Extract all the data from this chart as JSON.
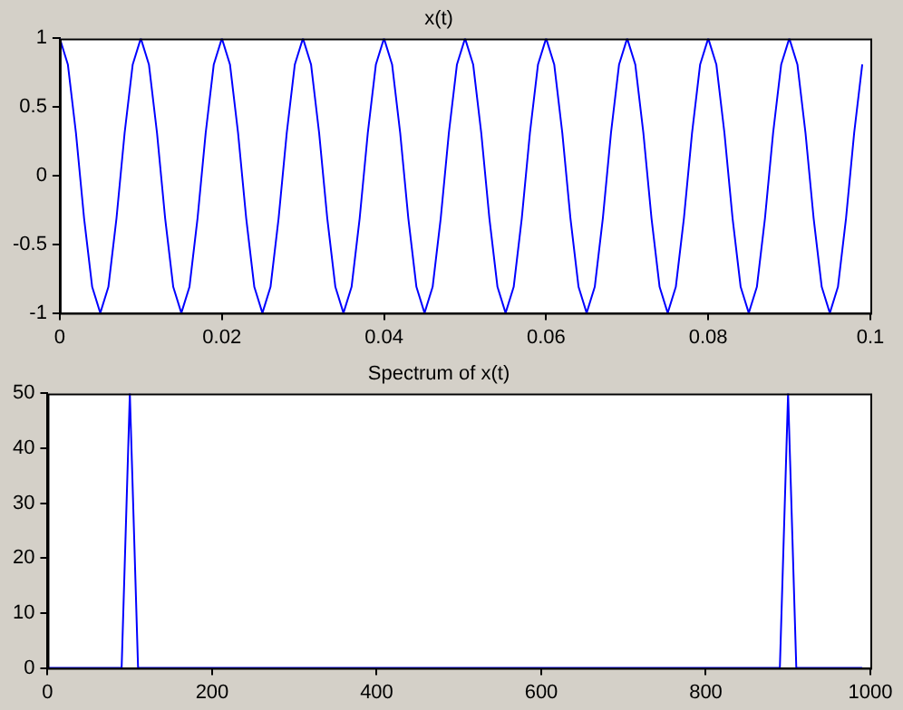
{
  "chart_data": [
    {
      "type": "line",
      "title": "x(t)",
      "xlim": [
        0,
        0.1
      ],
      "xticks": [
        0,
        0.02,
        0.04,
        0.06,
        0.08,
        0.1
      ],
      "ylim": [
        -1,
        1
      ],
      "yticks": [
        -1,
        -0.5,
        0,
        0.5,
        1
      ],
      "grid": false,
      "legend": false,
      "marker": "none",
      "line_style": "solid",
      "series": [
        {
          "color": "#0000ff",
          "x": [
            0,
            0.001,
            0.002,
            0.003,
            0.004,
            0.005,
            0.006,
            0.007,
            0.008,
            0.009,
            0.01,
            0.011,
            0.012,
            0.013,
            0.014,
            0.015,
            0.016,
            0.017,
            0.018,
            0.019,
            0.02,
            0.021,
            0.022,
            0.023,
            0.024,
            0.025,
            0.026,
            0.027,
            0.028,
            0.029,
            0.03,
            0.031,
            0.032,
            0.033,
            0.034,
            0.035,
            0.036,
            0.037,
            0.038,
            0.039,
            0.04,
            0.041,
            0.042,
            0.043,
            0.044,
            0.045,
            0.046,
            0.047,
            0.048,
            0.049,
            0.05,
            0.051,
            0.052,
            0.053,
            0.054,
            0.055,
            0.056,
            0.057,
            0.058,
            0.059,
            0.06,
            0.061,
            0.062,
            0.063,
            0.064,
            0.065,
            0.066,
            0.067,
            0.068,
            0.069,
            0.07,
            0.071,
            0.072,
            0.073,
            0.074,
            0.075,
            0.076,
            0.077,
            0.078,
            0.079,
            0.08,
            0.081,
            0.082,
            0.083,
            0.084,
            0.085,
            0.086,
            0.087,
            0.088,
            0.089,
            0.09,
            0.091,
            0.092,
            0.093,
            0.094,
            0.095,
            0.096,
            0.097,
            0.098,
            0.099
          ],
          "values": [
            1,
            0.81,
            0.31,
            -0.31,
            -0.81,
            -1,
            -0.81,
            -0.31,
            0.31,
            0.81,
            1,
            0.81,
            0.31,
            -0.31,
            -0.81,
            -1,
            -0.81,
            -0.31,
            0.31,
            0.81,
            1,
            0.81,
            0.31,
            -0.31,
            -0.81,
            -1,
            -0.81,
            -0.31,
            0.31,
            0.81,
            1,
            0.81,
            0.31,
            -0.31,
            -0.81,
            -1,
            -0.81,
            -0.31,
            0.31,
            0.81,
            1,
            0.81,
            0.31,
            -0.31,
            -0.81,
            -1,
            -0.81,
            -0.31,
            0.31,
            0.81,
            1,
            0.81,
            0.31,
            -0.31,
            -0.81,
            -1,
            -0.81,
            -0.31,
            0.31,
            0.81,
            1,
            0.81,
            0.31,
            -0.31,
            -0.81,
            -1,
            -0.81,
            -0.31,
            0.31,
            0.81,
            1,
            0.81,
            0.31,
            -0.31,
            -0.81,
            -1,
            -0.81,
            -0.31,
            0.31,
            0.81,
            1,
            0.81,
            0.31,
            -0.31,
            -0.81,
            -1,
            -0.81,
            -0.31,
            0.31,
            0.81,
            1,
            0.81,
            0.31,
            -0.31,
            -0.81,
            -1,
            -0.81,
            -0.31,
            0.31,
            0.81
          ]
        }
      ]
    },
    {
      "type": "line",
      "title": "Spectrum of x(t)",
      "xlim": [
        0,
        1000
      ],
      "xticks": [
        0,
        200,
        400,
        600,
        800,
        1000
      ],
      "ylim": [
        0,
        50
      ],
      "yticks": [
        0,
        10,
        20,
        30,
        40,
        50
      ],
      "grid": false,
      "legend": false,
      "marker": "none",
      "line_style": "solid",
      "series": [
        {
          "color": "#0000ff",
          "x": [
            0,
            10,
            20,
            30,
            40,
            50,
            60,
            70,
            80,
            90,
            100,
            110,
            120,
            130,
            140,
            150,
            160,
            170,
            180,
            190,
            200,
            210,
            220,
            230,
            240,
            250,
            260,
            270,
            280,
            290,
            300,
            310,
            320,
            330,
            340,
            350,
            360,
            370,
            380,
            390,
            400,
            410,
            420,
            430,
            440,
            450,
            460,
            470,
            480,
            490,
            500,
            510,
            520,
            530,
            540,
            550,
            560,
            570,
            580,
            590,
            600,
            610,
            620,
            630,
            640,
            650,
            660,
            670,
            680,
            690,
            700,
            710,
            720,
            730,
            740,
            750,
            760,
            770,
            780,
            790,
            800,
            810,
            820,
            830,
            840,
            850,
            860,
            870,
            880,
            890,
            900,
            910,
            920,
            930,
            940,
            950,
            960,
            970,
            980,
            990
          ],
          "values": [
            0,
            0,
            0,
            0,
            0,
            0,
            0,
            0,
            0,
            0,
            50,
            0,
            0,
            0,
            0,
            0,
            0,
            0,
            0,
            0,
            0,
            0,
            0,
            0,
            0,
            0,
            0,
            0,
            0,
            0,
            0,
            0,
            0,
            0,
            0,
            0,
            0,
            0,
            0,
            0,
            0,
            0,
            0,
            0,
            0,
            0,
            0,
            0,
            0,
            0,
            0,
            0,
            0,
            0,
            0,
            0,
            0,
            0,
            0,
            0,
            0,
            0,
            0,
            0,
            0,
            0,
            0,
            0,
            0,
            0,
            0,
            0,
            0,
            0,
            0,
            0,
            0,
            0,
            0,
            0,
            0,
            0,
            0,
            0,
            0,
            0,
            0,
            0,
            0,
            0,
            50,
            0,
            0,
            0,
            0,
            0,
            0,
            0,
            0,
            0
          ]
        }
      ]
    }
  ]
}
